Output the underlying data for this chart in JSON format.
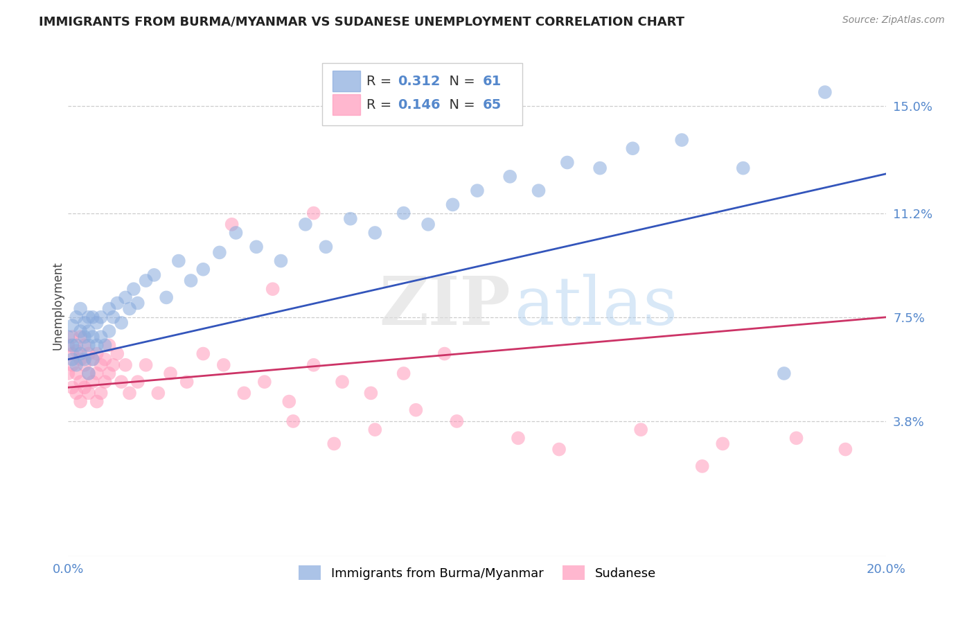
{
  "title": "IMMIGRANTS FROM BURMA/MYANMAR VS SUDANESE UNEMPLOYMENT CORRELATION CHART",
  "source": "Source: ZipAtlas.com",
  "ylabel": "Unemployment",
  "xlim": [
    0.0,
    0.2
  ],
  "ylim": [
    -0.01,
    0.168
  ],
  "ytick_values": [
    0.038,
    0.075,
    0.112,
    0.15
  ],
  "ytick_labels": [
    "3.8%",
    "7.5%",
    "11.2%",
    "15.0%"
  ],
  "blue_color": "#88AADD",
  "pink_color": "#FF99BB",
  "blue_line_color": "#3355BB",
  "pink_line_color": "#CC3366",
  "blue_R": 0.312,
  "blue_N": 61,
  "pink_R": 0.146,
  "pink_N": 65,
  "legend_label_blue": "Immigrants from Burma/Myanmar",
  "legend_label_pink": "Sudanese",
  "watermark_zip": "ZIP",
  "watermark_atlas": "atlas",
  "tick_color": "#5588CC",
  "grid_color": "#CCCCCC",
  "background_color": "#FFFFFF",
  "blue_scatter_x": [
    0.0,
    0.001,
    0.001,
    0.001,
    0.002,
    0.002,
    0.002,
    0.003,
    0.003,
    0.003,
    0.004,
    0.004,
    0.004,
    0.005,
    0.005,
    0.005,
    0.005,
    0.006,
    0.006,
    0.006,
    0.007,
    0.007,
    0.008,
    0.008,
    0.009,
    0.01,
    0.01,
    0.011,
    0.012,
    0.013,
    0.014,
    0.015,
    0.016,
    0.017,
    0.019,
    0.021,
    0.024,
    0.027,
    0.03,
    0.033,
    0.037,
    0.041,
    0.046,
    0.052,
    0.058,
    0.063,
    0.069,
    0.075,
    0.082,
    0.088,
    0.094,
    0.1,
    0.108,
    0.115,
    0.122,
    0.13,
    0.138,
    0.15,
    0.165,
    0.175,
    0.185
  ],
  "blue_scatter_y": [
    0.068,
    0.06,
    0.072,
    0.065,
    0.058,
    0.065,
    0.075,
    0.062,
    0.07,
    0.078,
    0.06,
    0.068,
    0.073,
    0.055,
    0.065,
    0.07,
    0.075,
    0.06,
    0.068,
    0.075,
    0.065,
    0.073,
    0.068,
    0.075,
    0.065,
    0.07,
    0.078,
    0.075,
    0.08,
    0.073,
    0.082,
    0.078,
    0.085,
    0.08,
    0.088,
    0.09,
    0.082,
    0.095,
    0.088,
    0.092,
    0.098,
    0.105,
    0.1,
    0.095,
    0.108,
    0.1,
    0.11,
    0.105,
    0.112,
    0.108,
    0.115,
    0.12,
    0.125,
    0.12,
    0.13,
    0.128,
    0.135,
    0.138,
    0.128,
    0.055,
    0.155
  ],
  "pink_scatter_x": [
    0.0,
    0.0,
    0.001,
    0.001,
    0.001,
    0.001,
    0.002,
    0.002,
    0.002,
    0.003,
    0.003,
    0.003,
    0.003,
    0.004,
    0.004,
    0.004,
    0.005,
    0.005,
    0.005,
    0.006,
    0.006,
    0.007,
    0.007,
    0.007,
    0.008,
    0.008,
    0.009,
    0.009,
    0.01,
    0.01,
    0.011,
    0.012,
    0.013,
    0.014,
    0.015,
    0.017,
    0.019,
    0.022,
    0.025,
    0.029,
    0.033,
    0.038,
    0.043,
    0.048,
    0.054,
    0.06,
    0.067,
    0.074,
    0.082,
    0.092,
    0.055,
    0.065,
    0.075,
    0.085,
    0.095,
    0.11,
    0.12,
    0.14,
    0.16,
    0.178,
    0.19,
    0.04,
    0.05,
    0.06,
    0.155
  ],
  "pink_scatter_y": [
    0.055,
    0.065,
    0.05,
    0.058,
    0.062,
    0.068,
    0.048,
    0.055,
    0.063,
    0.045,
    0.052,
    0.06,
    0.068,
    0.05,
    0.058,
    0.065,
    0.048,
    0.055,
    0.062,
    0.052,
    0.06,
    0.045,
    0.055,
    0.062,
    0.048,
    0.058,
    0.052,
    0.06,
    0.055,
    0.065,
    0.058,
    0.062,
    0.052,
    0.058,
    0.048,
    0.052,
    0.058,
    0.048,
    0.055,
    0.052,
    0.062,
    0.058,
    0.048,
    0.052,
    0.045,
    0.058,
    0.052,
    0.048,
    0.055,
    0.062,
    0.038,
    0.03,
    0.035,
    0.042,
    0.038,
    0.032,
    0.028,
    0.035,
    0.03,
    0.032,
    0.028,
    0.108,
    0.085,
    0.112,
    0.022
  ],
  "blue_trend_start_y": 0.06,
  "blue_trend_end_y": 0.126,
  "pink_trend_start_y": 0.05,
  "pink_trend_end_y": 0.075,
  "legend_blue_text": "R = 0.312   N = 61",
  "legend_pink_text": "R = 0.146   N = 65"
}
